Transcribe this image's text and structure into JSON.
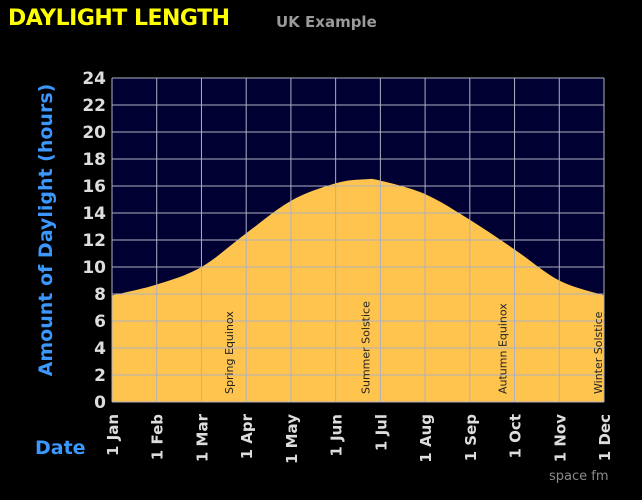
{
  "chart_data": {
    "type": "area",
    "title": "DAYLIGHT LENGTH",
    "subtitle": "UK Example",
    "xlabel": "Date",
    "ylabel": "Amount of Daylight (hours)",
    "ylim": [
      0,
      24
    ],
    "yticks": [
      0,
      2,
      4,
      6,
      8,
      10,
      12,
      14,
      16,
      18,
      20,
      22,
      24
    ],
    "xticks": [
      "1 Jan",
      "1 Feb",
      "1 Mar",
      "1 Apr",
      "1 May",
      "1 Jun",
      "1 Jul",
      "1 Aug",
      "1 Sep",
      "1 Oct",
      "1 Nov",
      "1 Dec"
    ],
    "grid": true,
    "points": [
      {
        "month": 1,
        "day": 1,
        "hours": 7.9
      },
      {
        "month": 2,
        "day": 1,
        "hours": 8.7
      },
      {
        "month": 3,
        "day": 1,
        "hours": 10.0
      },
      {
        "month": 4,
        "day": 1,
        "hours": 12.5
      },
      {
        "month": 5,
        "day": 1,
        "hours": 14.9
      },
      {
        "month": 6,
        "day": 1,
        "hours": 16.2
      },
      {
        "month": 6,
        "day": 21,
        "hours": 16.5
      },
      {
        "month": 7,
        "day": 1,
        "hours": 16.4
      },
      {
        "month": 8,
        "day": 1,
        "hours": 15.4
      },
      {
        "month": 9,
        "day": 1,
        "hours": 13.5
      },
      {
        "month": 10,
        "day": 1,
        "hours": 11.3
      },
      {
        "month": 11,
        "day": 1,
        "hours": 9.0
      },
      {
        "month": 12,
        "day": 1,
        "hours": 7.9
      }
    ],
    "annotations": [
      {
        "label": "Spring Equinox",
        "month": 3,
        "day": 20
      },
      {
        "label": "Summer Solstice",
        "month": 6,
        "day": 21
      },
      {
        "label": "Autumn Equinox",
        "month": 9,
        "day": 23
      },
      {
        "label": "Winter Solstice",
        "month": 12,
        "day": 21
      }
    ],
    "colors": {
      "fill": "#ffc44d",
      "night": "#000033",
      "grid": "#b0b0c0",
      "title": "#ffff00",
      "axis_label": "#3a98ff",
      "tick": "#dddddd"
    }
  },
  "brand": "space fm"
}
